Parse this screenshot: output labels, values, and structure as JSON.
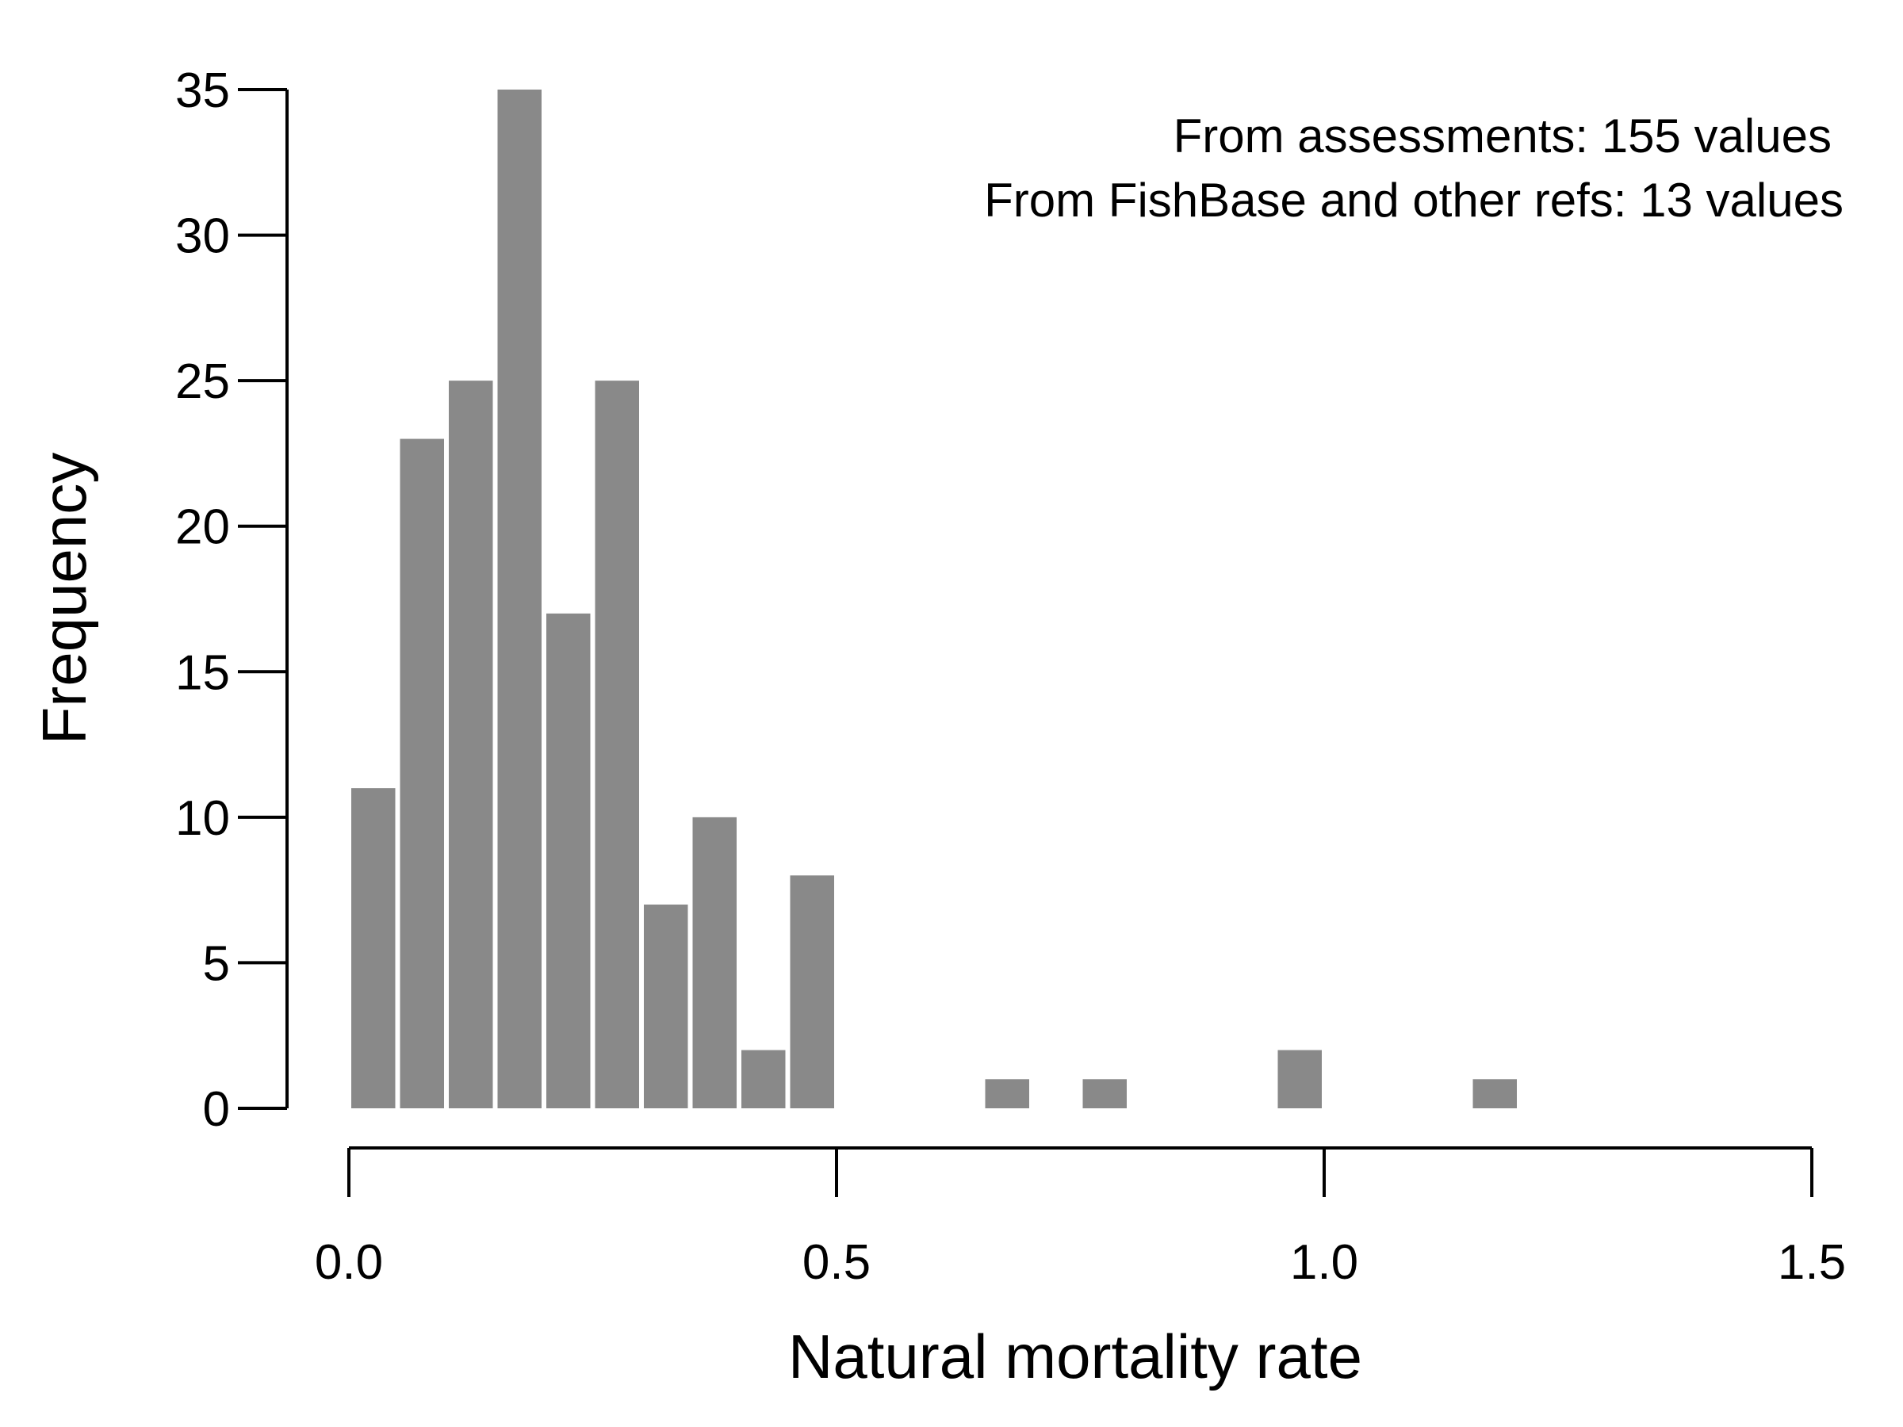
{
  "chart_data": {
    "type": "bar",
    "subtype": "histogram",
    "bin_width": 0.05,
    "bins": [
      {
        "x0": 0.0,
        "x1": 0.05,
        "count": 11
      },
      {
        "x0": 0.05,
        "x1": 0.1,
        "count": 23
      },
      {
        "x0": 0.1,
        "x1": 0.15,
        "count": 25
      },
      {
        "x0": 0.15,
        "x1": 0.2,
        "count": 35
      },
      {
        "x0": 0.2,
        "x1": 0.25,
        "count": 17
      },
      {
        "x0": 0.25,
        "x1": 0.3,
        "count": 25
      },
      {
        "x0": 0.3,
        "x1": 0.35,
        "count": 7
      },
      {
        "x0": 0.35,
        "x1": 0.4,
        "count": 10
      },
      {
        "x0": 0.4,
        "x1": 0.45,
        "count": 2
      },
      {
        "x0": 0.45,
        "x1": 0.5,
        "count": 8
      },
      {
        "x0": 0.65,
        "x1": 0.7,
        "count": 1
      },
      {
        "x0": 0.75,
        "x1": 0.8,
        "count": 1
      },
      {
        "x0": 0.95,
        "x1": 1.0,
        "count": 2
      },
      {
        "x0": 1.15,
        "x1": 1.2,
        "count": 1
      }
    ],
    "xlabel": "Natural mortality rate",
    "ylabel": "Frequency",
    "xlim": [
      0.0,
      1.5
    ],
    "ylim": [
      0,
      35
    ],
    "xticks": [
      "0.0",
      "0.5",
      "1.0",
      "1.5"
    ],
    "yticks": [
      "0",
      "5",
      "10",
      "15",
      "20",
      "25",
      "30",
      "35"
    ],
    "bar_color": "#898989",
    "grid": false,
    "annotations": [
      "From assessments: 155 values",
      "From FishBase and other refs: 13 values"
    ],
    "annotation_placement": "top-right"
  }
}
